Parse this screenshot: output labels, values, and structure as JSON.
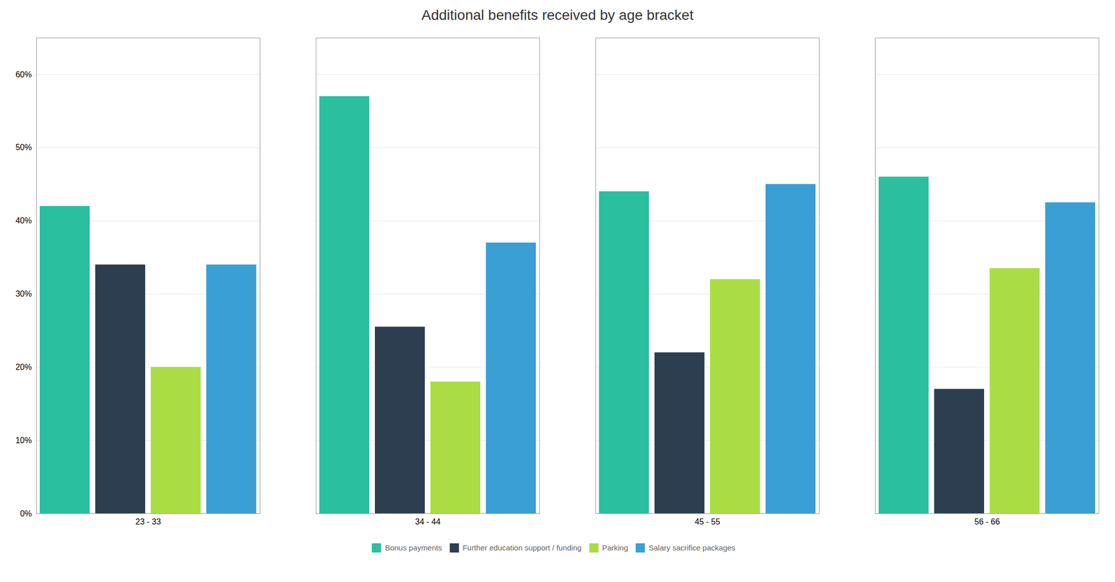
{
  "chart_data": {
    "type": "bar",
    "title": "Additional benefits received by age bracket",
    "categories": [
      "23 - 33",
      "34 - 44",
      "45 - 55",
      "56 - 66"
    ],
    "series": [
      {
        "name": "Bonus payments",
        "color": "#2abf9e",
        "values": [
          0.42,
          0.57,
          0.44,
          0.46
        ]
      },
      {
        "name": "Further education support / funding",
        "color": "#2d3e50",
        "values": [
          0.34,
          0.255,
          0.22,
          0.17
        ]
      },
      {
        "name": "Parking",
        "color": "#aadd44",
        "values": [
          0.2,
          0.18,
          0.32,
          0.335
        ]
      },
      {
        "name": "Salary sacrifice packages",
        "color": "#3a9fd4",
        "values": [
          0.34,
          0.37,
          0.45,
          0.425
        ]
      }
    ],
    "ylim": [
      0,
      0.65
    ],
    "yticks": [
      {
        "value": 0.0,
        "label": "0%"
      },
      {
        "value": 0.1,
        "label": "10%"
      },
      {
        "value": 0.2,
        "label": "20%"
      },
      {
        "value": 0.3,
        "label": "30%"
      },
      {
        "value": 0.4,
        "label": "40%"
      },
      {
        "value": 0.5,
        "label": "50%"
      },
      {
        "value": 0.6,
        "label": "60%"
      }
    ],
    "grid": true,
    "legend": "bottom"
  }
}
